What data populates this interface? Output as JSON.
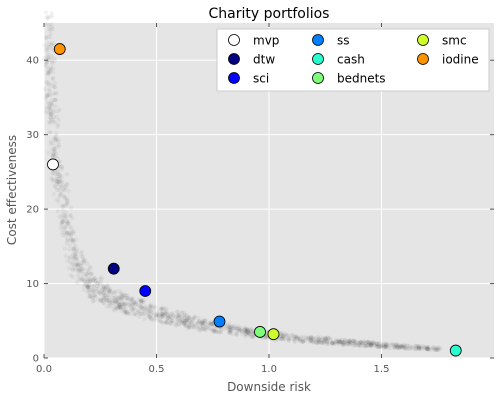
{
  "chart_data": {
    "type": "scatter",
    "title": "Charity portfolios",
    "xlabel": "Downside risk",
    "ylabel": "Cost effectiveness",
    "xlim": [
      0,
      2.0
    ],
    "ylim": [
      0,
      45
    ],
    "xticks": [
      "0.0",
      "0.5",
      "1.0",
      "1.5"
    ],
    "yticks": [
      "0",
      "10",
      "20",
      "30",
      "40"
    ],
    "grid": true,
    "background": "#e5e5e5",
    "gridColor": "#ffffff",
    "legend_position": "top-right",
    "cloud": {
      "color": "#000000",
      "curve": [
        [
          0.02,
          40
        ],
        [
          0.04,
          32
        ],
        [
          0.06,
          26
        ],
        [
          0.1,
          18
        ],
        [
          0.14,
          13
        ],
        [
          0.2,
          10
        ],
        [
          0.3,
          8
        ],
        [
          0.5,
          6
        ],
        [
          0.7,
          4.5
        ],
        [
          1.0,
          3
        ],
        [
          1.3,
          2.2
        ],
        [
          1.6,
          1.5
        ],
        [
          1.8,
          1.2
        ]
      ]
    },
    "series": [
      {
        "name": "mvp",
        "color": "#ffffff",
        "x": 0.04,
        "y": 26
      },
      {
        "name": "dtw",
        "color": "#000080",
        "x": 0.31,
        "y": 12
      },
      {
        "name": "sci",
        "color": "#0000ff",
        "x": 0.45,
        "y": 9
      },
      {
        "name": "ss",
        "color": "#0080ff",
        "x": 0.78,
        "y": 4.9
      },
      {
        "name": "cash",
        "color": "#29ffce",
        "x": 1.83,
        "y": 1.0
      },
      {
        "name": "bednets",
        "color": "#7dff7a",
        "x": 0.96,
        "y": 3.5
      },
      {
        "name": "smc",
        "color": "#ceff29",
        "x": 1.02,
        "y": 3.2
      },
      {
        "name": "iodine",
        "color": "#ff9400",
        "x": 0.07,
        "y": 41.5
      }
    ]
  }
}
